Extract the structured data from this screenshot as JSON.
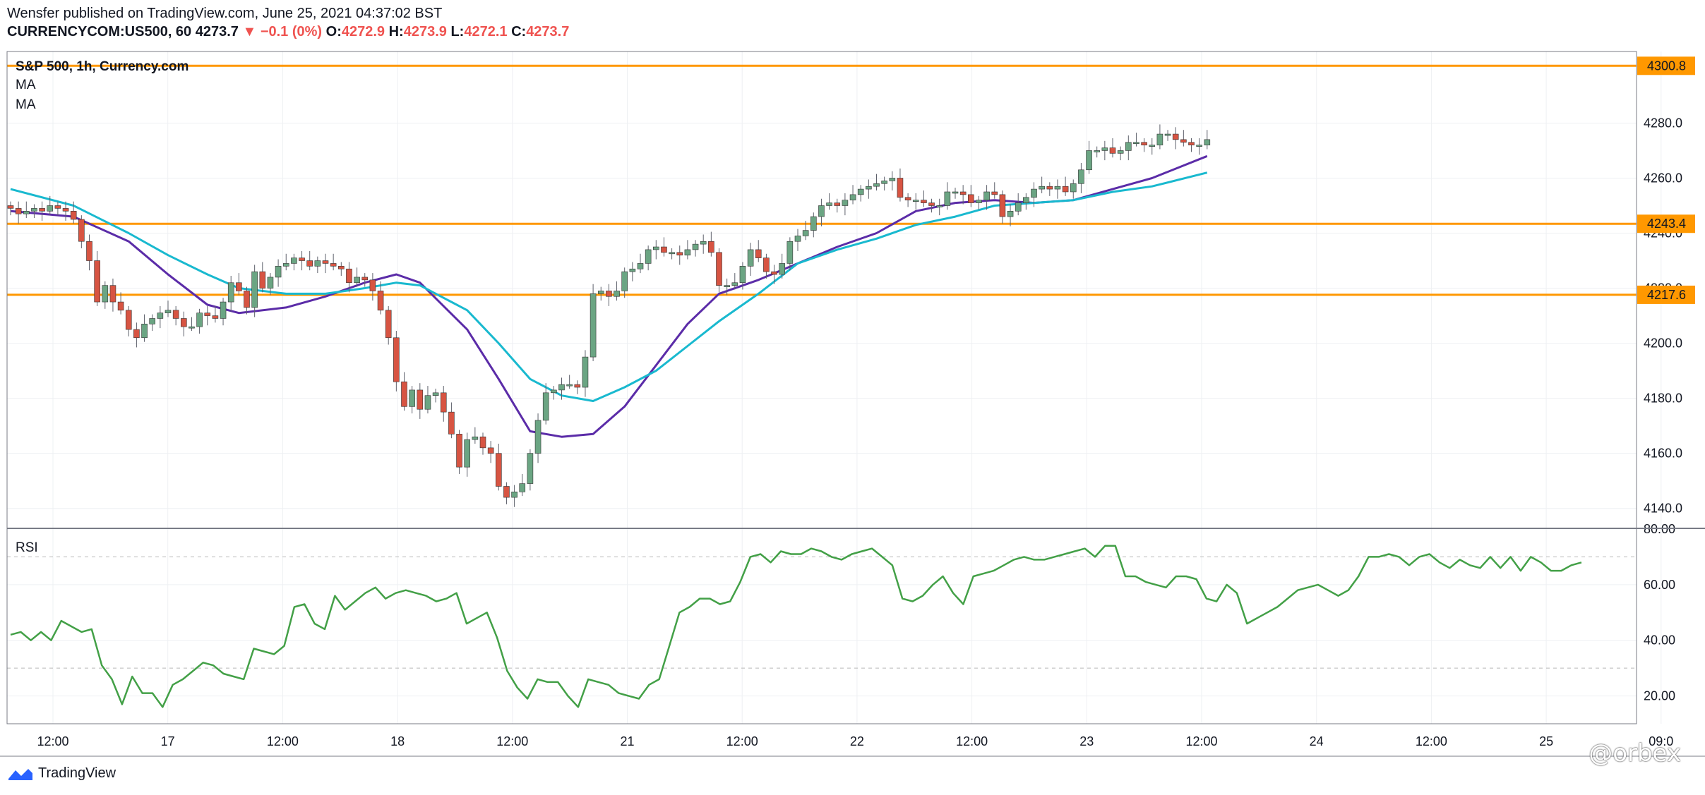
{
  "header": {
    "publisher": "Wensfer published on TradingView.com, June 25, 2021 04:37:02 BST",
    "symbol": "CURRENCYCOM:US500, 60",
    "last": "4273.7",
    "change": "▼ −0.1 (0%)",
    "o_label": "O:",
    "o_value": "4272.9",
    "h_label": "H:",
    "h_value": "4273.9",
    "l_label": "L:",
    "l_value": "4272.1",
    "c_label": "C:",
    "c_value": "4273.7"
  },
  "legend": {
    "title": "S&P 500, 1h, Currency.com",
    "ma1": "MA",
    "ma2": "MA",
    "rsi": "RSI"
  },
  "footer": {
    "brand": "TradingView",
    "watermark": "@orbex"
  },
  "colors": {
    "up": "#6ba583",
    "down": "#d75442",
    "ma_fast": "#5b2ca8",
    "ma_slow": "#19b9cf",
    "level": "#ff9800",
    "rsi": "#43a047"
  },
  "chart_data": [
    {
      "type": "candlestick",
      "title": "S&P 500, 1h, Currency.com",
      "ylim": [
        4133,
        4306
      ],
      "y_ticks": [
        4140,
        4160,
        4180,
        4200,
        4220,
        4240,
        4260,
        4280
      ],
      "y_tick_labels": [
        "4140.0",
        "4160.0",
        "4180.0",
        "4200.0",
        "4220.0",
        "4240.0",
        "4260.0",
        "4280.0"
      ],
      "x_tick_labels": [
        "12:00",
        "17",
        "12:00",
        "18",
        "12:00",
        "21",
        "12:00",
        "22",
        "12:00",
        "23",
        "12:00",
        "24",
        "12:00",
        "25",
        "09:0"
      ],
      "levels": [
        {
          "value": 4300.8,
          "label": "4300.8"
        },
        {
          "value": 4243.4,
          "label": "4243.4"
        },
        {
          "value": 4217.6,
          "label": "4217.6"
        }
      ],
      "close": [
        4249,
        4247,
        4248,
        4249,
        4248,
        4250,
        4249,
        4248,
        4245,
        4237,
        4230,
        4215,
        4221,
        4215,
        4212,
        4205,
        4202,
        4207,
        4209,
        4211,
        4212,
        4209,
        4206,
        4206,
        4211,
        4210,
        4209,
        4215,
        4222,
        4219,
        4213,
        4226,
        4220,
        4224,
        4228,
        4229,
        4231,
        4230,
        4228,
        4230,
        4229,
        4228,
        4227,
        4222,
        4224,
        4223,
        4219,
        4212,
        4202,
        4186,
        4177,
        4183,
        4176,
        4181,
        4182,
        4175,
        4167,
        4155,
        4165,
        4166,
        4162,
        4160,
        4148,
        4144,
        4146,
        4149,
        4160,
        4172,
        4182,
        4183,
        4185,
        4185,
        4184,
        4195,
        4218,
        4219,
        4217,
        4219,
        4226,
        4227,
        4229,
        4234,
        4235,
        4233,
        4233,
        4232,
        4234,
        4236,
        4237,
        4233,
        4221,
        4221,
        4222,
        4228,
        4234,
        4231,
        4226,
        4225,
        4229,
        4237,
        4239,
        4241,
        4246,
        4250,
        4251,
        4250,
        4252,
        4254,
        4256,
        4257,
        4258,
        4259,
        4260,
        4253,
        4252,
        4252,
        4251,
        4250,
        4250,
        4255,
        4255,
        4254,
        4251,
        4252,
        4255,
        4254,
        4246,
        4248,
        4251,
        4253,
        4256,
        4257,
        4256,
        4257,
        4255,
        4258,
        4263,
        4270,
        4270,
        4271,
        4269,
        4270,
        4273,
        4273,
        4272,
        4272,
        4276,
        4276,
        4274,
        4273,
        4272,
        4272,
        4274
      ],
      "series": [
        {
          "name": "MA",
          "x": [
            0,
            8,
            15,
            20,
            25,
            29,
            35,
            40,
            45,
            49,
            52,
            58,
            62,
            66,
            70,
            74,
            78,
            82,
            86,
            90,
            95,
            100,
            105,
            110,
            115,
            120,
            125,
            130,
            135,
            140,
            145,
            152
          ],
          "values": [
            4248,
            4246,
            4237,
            4225,
            4214,
            4211,
            4213,
            4217,
            4222,
            4225,
            4222,
            4205,
            4187,
            4168,
            4166,
            4167,
            4177,
            4192,
            4207,
            4218,
            4223,
            4229,
            4235,
            4240,
            4248,
            4251,
            4252,
            4251,
            4252,
            4256,
            4260,
            4268
          ]
        },
        {
          "name": "MA",
          "x": [
            0,
            8,
            15,
            20,
            25,
            29,
            35,
            40,
            45,
            49,
            52,
            58,
            62,
            66,
            70,
            74,
            78,
            82,
            86,
            90,
            95,
            100,
            105,
            110,
            115,
            120,
            125,
            130,
            135,
            140,
            145,
            152
          ],
          "values": [
            4256,
            4250,
            4240,
            4232,
            4225,
            4220,
            4218,
            4218,
            4220,
            4222,
            4221,
            4212,
            4200,
            4187,
            4181,
            4179,
            4184,
            4190,
            4199,
            4208,
            4218,
            4229,
            4234,
            4238,
            4243,
            4246,
            4250,
            4251,
            4252,
            4255,
            4257,
            4262
          ]
        }
      ]
    },
    {
      "type": "line",
      "title": "RSI",
      "ylim": [
        10,
        80
      ],
      "y_ticks": [
        20,
        40,
        60,
        80
      ],
      "y_tick_labels": [
        "20.00",
        "40.00",
        "60.00",
        "80.00"
      ],
      "ref_lines": [
        70,
        30
      ],
      "series": [
        {
          "name": "RSI",
          "values": [
            42,
            43,
            40,
            43,
            40,
            47,
            45,
            43,
            44,
            31,
            26,
            17,
            27,
            21,
            21,
            16,
            24,
            26,
            29,
            32,
            31,
            28,
            27,
            26,
            37,
            36,
            35,
            38,
            52,
            53,
            46,
            44,
            56,
            51,
            54,
            57,
            59,
            55,
            57,
            58,
            57,
            56,
            54,
            55,
            57,
            46,
            48,
            50,
            41,
            29,
            23,
            19,
            26,
            25,
            25,
            20,
            16,
            26,
            25,
            24,
            21,
            20,
            19,
            24,
            26,
            38,
            50,
            52,
            55,
            55,
            53,
            54,
            61,
            70,
            71,
            68,
            72,
            71,
            71,
            73,
            72,
            70,
            69,
            71,
            72,
            73,
            70,
            67,
            55,
            54,
            56,
            60,
            63,
            57,
            53,
            63,
            64,
            65,
            67,
            69,
            70,
            69,
            69,
            70,
            71,
            72,
            73,
            70,
            74,
            74,
            63,
            63,
            61,
            60,
            59,
            63,
            63,
            62,
            55,
            54,
            60,
            57,
            46,
            48,
            50,
            52,
            55,
            58,
            59,
            60,
            58,
            56,
            58,
            63,
            70,
            70,
            71,
            70,
            67,
            70,
            71,
            68,
            66,
            69,
            67,
            66,
            70,
            66,
            70,
            65,
            70,
            68,
            65,
            65,
            67,
            68
          ]
        }
      ]
    }
  ]
}
